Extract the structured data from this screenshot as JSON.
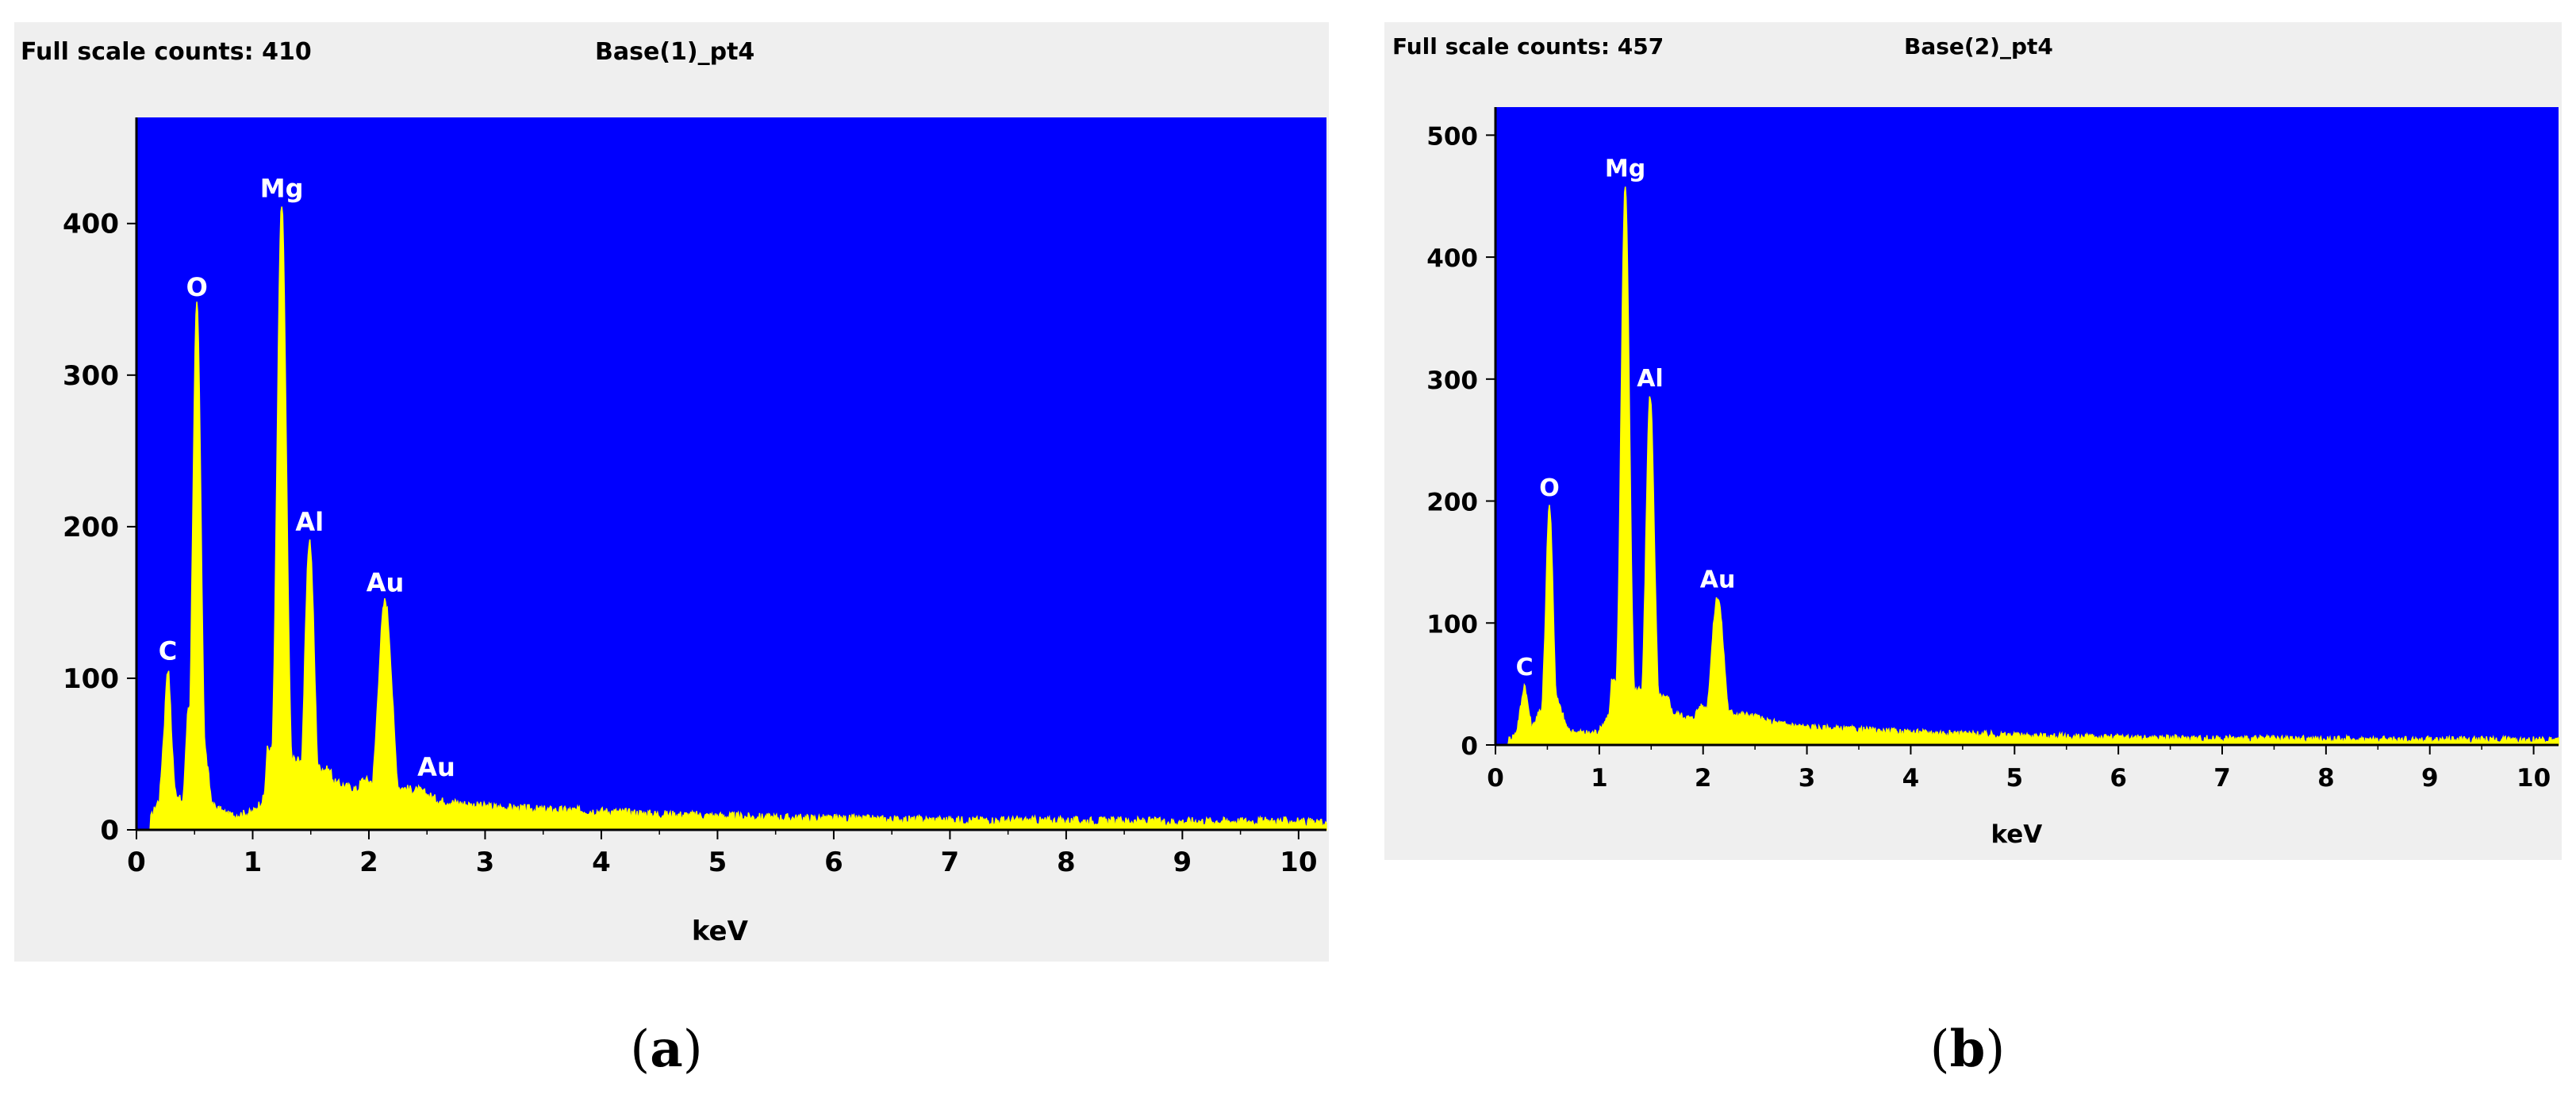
{
  "figure": {
    "captions": [
      "a",
      "b"
    ]
  },
  "colors": {
    "plot_background": "#0000ff",
    "spectrum": "#ffff00",
    "peak_label": "#ffffff",
    "panel_background": "#efefef",
    "axis_text": "#000000"
  },
  "chart_data": [
    {
      "type": "area",
      "header_left": "Full scale counts: 410",
      "title": "Base(1)_pt4",
      "xlabel": "keV",
      "ylabel": "",
      "xlim": [
        0,
        10.24
      ],
      "ylim": [
        0,
        470
      ],
      "xticks": [
        "0",
        "1",
        "2",
        "3",
        "4",
        "5",
        "6",
        "7",
        "8",
        "9",
        "10"
      ],
      "yticks": [
        "0",
        "100",
        "200",
        "300",
        "400"
      ],
      "grid": false,
      "legend": "none",
      "background": 3,
      "peaks": [
        {
          "label": "C",
          "x": 0.27,
          "y": 105,
          "width": 0.03
        },
        {
          "label": "O",
          "x": 0.52,
          "y": 345,
          "width": 0.035
        },
        {
          "label": "Mg",
          "x": 1.25,
          "y": 410,
          "width": 0.04
        },
        {
          "label": "Al",
          "x": 1.49,
          "y": 190,
          "width": 0.04
        },
        {
          "label": "Au",
          "x": 2.14,
          "y": 150,
          "width": 0.06
        },
        {
          "label": "Au",
          "x": 2.43,
          "y": 25,
          "width": 0.05
        }
      ],
      "series": [
        {
          "values": [
            [
              0.0,
              0
            ],
            [
              0.1,
              2
            ],
            [
              0.2,
              20
            ],
            [
              0.27,
              105
            ],
            [
              0.33,
              25
            ],
            [
              0.4,
              15
            ],
            [
              0.47,
              120
            ],
            [
              0.52,
              345
            ],
            [
              0.58,
              60
            ],
            [
              0.65,
              15
            ],
            [
              0.8,
              8
            ],
            [
              1.0,
              10
            ],
            [
              1.1,
              20
            ],
            [
              1.18,
              120
            ],
            [
              1.25,
              410
            ],
            [
              1.32,
              180
            ],
            [
              1.4,
              70
            ],
            [
              1.49,
              190
            ],
            [
              1.58,
              60
            ],
            [
              1.7,
              30
            ],
            [
              1.9,
              25
            ],
            [
              2.0,
              40
            ],
            [
              2.08,
              120
            ],
            [
              2.14,
              150
            ],
            [
              2.2,
              140
            ],
            [
              2.3,
              50
            ],
            [
              2.43,
              25
            ],
            [
              2.6,
              18
            ],
            [
              2.8,
              16
            ],
            [
              3.0,
              14
            ],
            [
              3.5,
              12
            ],
            [
              4.0,
              11
            ],
            [
              4.5,
              9
            ],
            [
              5.0,
              8
            ],
            [
              5.5,
              7
            ],
            [
              5.8,
              8
            ],
            [
              6.0,
              7
            ],
            [
              7.0,
              6
            ],
            [
              8.0,
              5
            ],
            [
              9.0,
              4
            ],
            [
              9.6,
              8
            ],
            [
              9.8,
              5
            ],
            [
              10.24,
              3
            ]
          ]
        }
      ]
    },
    {
      "type": "area",
      "header_left": "Full scale counts: 457",
      "title": "Base(2)_pt4",
      "xlabel": "keV",
      "ylabel": "",
      "xlim": [
        0,
        10.24
      ],
      "ylim": [
        0,
        523
      ],
      "xticks": [
        "0",
        "1",
        "2",
        "3",
        "4",
        "5",
        "6",
        "7",
        "8",
        "9",
        "10"
      ],
      "yticks": [
        "0",
        "100",
        "200",
        "300",
        "400",
        "500"
      ],
      "grid": false,
      "legend": "none",
      "background": 2,
      "peaks": [
        {
          "label": "C",
          "x": 0.28,
          "y": 48,
          "width": 0.03
        },
        {
          "label": "O",
          "x": 0.52,
          "y": 195,
          "width": 0.035
        },
        {
          "label": "Mg",
          "x": 1.25,
          "y": 457,
          "width": 0.04
        },
        {
          "label": "Al",
          "x": 1.49,
          "y": 285,
          "width": 0.04
        },
        {
          "label": "Au",
          "x": 2.14,
          "y": 120,
          "width": 0.06
        }
      ],
      "series": [
        {
          "values": [
            [
              0.0,
              0
            ],
            [
              0.1,
              1
            ],
            [
              0.2,
              8
            ],
            [
              0.28,
              48
            ],
            [
              0.35,
              12
            ],
            [
              0.45,
              30
            ],
            [
              0.52,
              195
            ],
            [
              0.58,
              40
            ],
            [
              0.7,
              10
            ],
            [
              0.9,
              8
            ],
            [
              1.0,
              10
            ],
            [
              1.1,
              25
            ],
            [
              1.18,
              150
            ],
            [
              1.25,
              457
            ],
            [
              1.33,
              200
            ],
            [
              1.41,
              120
            ],
            [
              1.49,
              285
            ],
            [
              1.57,
              90
            ],
            [
              1.7,
              25
            ],
            [
              1.9,
              20
            ],
            [
              2.0,
              35
            ],
            [
              2.08,
              100
            ],
            [
              2.14,
              120
            ],
            [
              2.22,
              90
            ],
            [
              2.35,
              30
            ],
            [
              2.6,
              18
            ],
            [
              3.0,
              13
            ],
            [
              3.5,
              11
            ],
            [
              4.0,
              9
            ],
            [
              5.0,
              7
            ],
            [
              6.0,
              5
            ],
            [
              7.0,
              4
            ],
            [
              8.0,
              4
            ],
            [
              9.0,
              3
            ],
            [
              9.6,
              6
            ],
            [
              9.8,
              5
            ],
            [
              10.24,
              2
            ]
          ]
        }
      ]
    }
  ]
}
